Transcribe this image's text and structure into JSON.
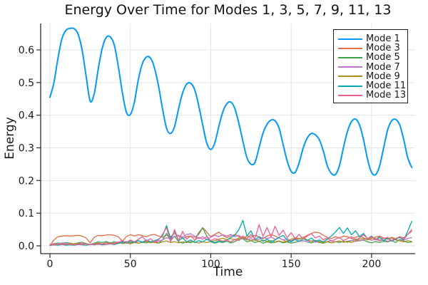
{
  "title": "Energy Over Time for Modes 1, 3, 5, 7, 9, 11, 13",
  "chart_data": {
    "type": "line",
    "title": "Energy Over Time for Modes 1, 3, 5, 7, 9, 11, 13",
    "xlabel": "Time",
    "ylabel": "Energy",
    "xlim": [
      -5.8,
      227
    ],
    "ylim": [
      -0.024,
      0.68
    ],
    "grid": true,
    "legend_position": "top-right",
    "xticks": [
      "0",
      "50",
      "100",
      "150",
      "200"
    ],
    "yticks": [
      "0.0",
      "0.1",
      "0.2",
      "0.3",
      "0.4",
      "0.5",
      "0.6"
    ],
    "x_start": 0,
    "x_step": 2.5,
    "series": [
      {
        "name": "Mode 1",
        "color": "#009AF9",
        "width": 2,
        "smooth": true,
        "values": [
          0.455,
          0.5,
          0.575,
          0.635,
          0.66,
          0.666,
          0.665,
          0.648,
          0.6,
          0.52,
          0.443,
          0.465,
          0.54,
          0.605,
          0.638,
          0.64,
          0.615,
          0.55,
          0.47,
          0.41,
          0.402,
          0.44,
          0.51,
          0.558,
          0.578,
          0.575,
          0.545,
          0.49,
          0.42,
          0.36,
          0.344,
          0.365,
          0.42,
          0.468,
          0.495,
          0.498,
          0.478,
          0.43,
          0.37,
          0.315,
          0.295,
          0.315,
          0.365,
          0.41,
          0.435,
          0.44,
          0.42,
          0.375,
          0.32,
          0.27,
          0.25,
          0.255,
          0.3,
          0.345,
          0.372,
          0.385,
          0.383,
          0.36,
          0.31,
          0.26,
          0.228,
          0.225,
          0.255,
          0.3,
          0.33,
          0.344,
          0.34,
          0.325,
          0.29,
          0.245,
          0.222,
          0.218,
          0.245,
          0.3,
          0.35,
          0.38,
          0.388,
          0.37,
          0.325,
          0.265,
          0.225,
          0.218,
          0.245,
          0.3,
          0.355,
          0.383,
          0.387,
          0.37,
          0.325,
          0.27,
          0.24
        ]
      },
      {
        "name": "Mode 3",
        "color": "#E26E46",
        "width": 1.3,
        "smooth": false,
        "values": [
          0.001,
          0.018,
          0.028,
          0.03,
          0.031,
          0.03,
          0.031,
          0.032,
          0.03,
          0.024,
          0.009,
          0.026,
          0.032,
          0.031,
          0.033,
          0.034,
          0.032,
          0.028,
          0.014,
          0.028,
          0.034,
          0.03,
          0.034,
          0.031,
          0.028,
          0.033,
          0.035,
          0.03,
          0.026,
          0.032,
          0.028,
          0.038,
          0.03,
          0.022,
          0.028,
          0.03,
          0.026,
          0.035,
          0.056,
          0.042,
          0.028,
          0.035,
          0.042,
          0.032,
          0.025,
          0.03,
          0.035,
          0.028,
          0.022,
          0.03,
          0.026,
          0.032,
          0.028,
          0.022,
          0.03,
          0.035,
          0.03,
          0.024,
          0.018,
          0.012,
          0.016,
          0.022,
          0.02,
          0.026,
          0.032,
          0.038,
          0.042,
          0.04,
          0.032,
          0.026,
          0.022,
          0.028,
          0.024,
          0.03,
          0.028,
          0.022,
          0.026,
          0.03,
          0.024,
          0.02,
          0.026,
          0.022,
          0.018,
          0.024,
          0.02,
          0.026,
          0.022,
          0.028,
          0.024,
          0.035,
          0.05
        ]
      },
      {
        "name": "Mode 5",
        "color": "#3DA44D",
        "width": 1.3,
        "smooth": false,
        "values": [
          0.002,
          0.006,
          0.009,
          0.007,
          0.01,
          0.008,
          0.006,
          0.009,
          0.011,
          0.007,
          0.004,
          0.008,
          0.012,
          0.01,
          0.013,
          0.009,
          0.012,
          0.008,
          0.01,
          0.013,
          0.009,
          0.012,
          0.008,
          0.011,
          0.009,
          0.013,
          0.01,
          0.008,
          0.018,
          0.038,
          0.015,
          0.03,
          0.012,
          0.008,
          0.012,
          0.009,
          0.015,
          0.04,
          0.055,
          0.03,
          0.012,
          0.008,
          0.012,
          0.01,
          0.014,
          0.009,
          0.013,
          0.02,
          0.022,
          0.012,
          0.016,
          0.01,
          0.014,
          0.008,
          0.012,
          0.009,
          0.011,
          0.014,
          0.009,
          0.012,
          0.008,
          0.011,
          0.014,
          0.016,
          0.012,
          0.009,
          0.013,
          0.01,
          0.008,
          0.012,
          0.009,
          0.013,
          0.01,
          0.014,
          0.011,
          0.016,
          0.021,
          0.015,
          0.018,
          0.012,
          0.009,
          0.013,
          0.01,
          0.014,
          0.012,
          0.016,
          0.01,
          0.02,
          0.015,
          0.01,
          0.012
        ]
      },
      {
        "name": "Mode 7",
        "color": "#C371D2",
        "width": 1.3,
        "smooth": false,
        "values": [
          0.003,
          0.007,
          0.005,
          0.009,
          0.006,
          0.008,
          0.005,
          0.007,
          0.009,
          0.006,
          0.004,
          0.007,
          0.009,
          0.006,
          0.01,
          0.007,
          0.009,
          0.012,
          0.008,
          0.011,
          0.014,
          0.01,
          0.015,
          0.012,
          0.016,
          0.013,
          0.01,
          0.014,
          0.018,
          0.025,
          0.02,
          0.028,
          0.032,
          0.027,
          0.035,
          0.037,
          0.03,
          0.022,
          0.028,
          0.02,
          0.026,
          0.032,
          0.028,
          0.034,
          0.03,
          0.035,
          0.028,
          0.032,
          0.024,
          0.018,
          0.022,
          0.016,
          0.02,
          0.026,
          0.022,
          0.027,
          0.02,
          0.024,
          0.018,
          0.022,
          0.015,
          0.019,
          0.013,
          0.016,
          0.012,
          0.015,
          0.011,
          0.014,
          0.01,
          0.013,
          0.016,
          0.012,
          0.015,
          0.011,
          0.014,
          0.017,
          0.013,
          0.016,
          0.019,
          0.022,
          0.017,
          0.02,
          0.015,
          0.018,
          0.014,
          0.017,
          0.02,
          0.015,
          0.018,
          0.022,
          0.025
        ]
      },
      {
        "name": "Mode 9",
        "color": "#AC8D18",
        "width": 1.3,
        "smooth": false,
        "values": [
          0.002,
          0.005,
          0.003,
          0.006,
          0.004,
          0.007,
          0.005,
          0.008,
          0.005,
          0.007,
          0.004,
          0.006,
          0.008,
          0.005,
          0.009,
          0.006,
          0.008,
          0.01,
          0.007,
          0.009,
          0.006,
          0.01,
          0.008,
          0.011,
          0.013,
          0.009,
          0.012,
          0.008,
          0.012,
          0.015,
          0.01,
          0.013,
          0.009,
          0.012,
          0.01,
          0.013,
          0.011,
          0.009,
          0.012,
          0.01,
          0.013,
          0.016,
          0.02,
          0.023,
          0.019,
          0.022,
          0.018,
          0.024,
          0.026,
          0.02,
          0.016,
          0.019,
          0.014,
          0.017,
          0.013,
          0.016,
          0.012,
          0.015,
          0.011,
          0.014,
          0.02,
          0.025,
          0.022,
          0.026,
          0.018,
          0.014,
          0.017,
          0.012,
          0.01,
          0.013,
          0.009,
          0.012,
          0.015,
          0.011,
          0.014,
          0.01,
          0.016,
          0.02,
          0.023,
          0.018,
          0.022,
          0.027,
          0.03,
          0.024,
          0.02,
          0.024,
          0.018,
          0.015,
          0.012,
          0.016,
          0.013
        ]
      },
      {
        "name": "Mode 11",
        "color": "#00AAAE",
        "width": 1.3,
        "smooth": false,
        "values": [
          0.001,
          0.003,
          0.002,
          0.004,
          0.002,
          0.003,
          0.002,
          0.004,
          0.003,
          0.002,
          0.004,
          0.003,
          0.005,
          0.003,
          0.004,
          0.006,
          0.004,
          0.007,
          0.012,
          0.008,
          0.015,
          0.01,
          0.016,
          0.011,
          0.018,
          0.012,
          0.016,
          0.02,
          0.03,
          0.062,
          0.022,
          0.045,
          0.015,
          0.025,
          0.012,
          0.018,
          0.01,
          0.016,
          0.012,
          0.02,
          0.014,
          0.01,
          0.016,
          0.012,
          0.018,
          0.025,
          0.032,
          0.05,
          0.078,
          0.03,
          0.046,
          0.018,
          0.028,
          0.014,
          0.02,
          0.012,
          0.018,
          0.026,
          0.032,
          0.018,
          0.012,
          0.02,
          0.014,
          0.022,
          0.016,
          0.024,
          0.014,
          0.018,
          0.012,
          0.02,
          0.03,
          0.042,
          0.056,
          0.038,
          0.055,
          0.034,
          0.046,
          0.028,
          0.038,
          0.022,
          0.03,
          0.018,
          0.026,
          0.016,
          0.024,
          0.014,
          0.02,
          0.026,
          0.018,
          0.045,
          0.075
        ]
      },
      {
        "name": "Mode 13",
        "color": "#ED5E93",
        "width": 1.3,
        "smooth": false,
        "values": [
          0.004,
          0.002,
          0.005,
          0.003,
          0.006,
          0.004,
          0.003,
          0.005,
          0.004,
          0.006,
          0.003,
          0.005,
          0.004,
          0.006,
          0.004,
          0.007,
          0.005,
          0.01,
          0.016,
          0.01,
          0.018,
          0.012,
          0.02,
          0.028,
          0.014,
          0.022,
          0.012,
          0.018,
          0.035,
          0.056,
          0.012,
          0.05,
          0.016,
          0.044,
          0.02,
          0.03,
          0.018,
          0.026,
          0.02,
          0.028,
          0.016,
          0.022,
          0.018,
          0.014,
          0.018,
          0.012,
          0.02,
          0.016,
          0.03,
          0.022,
          0.035,
          0.02,
          0.065,
          0.03,
          0.056,
          0.028,
          0.06,
          0.032,
          0.048,
          0.025,
          0.04,
          0.022,
          0.035,
          0.02,
          0.03,
          0.038,
          0.024,
          0.03,
          0.018,
          0.024,
          0.014,
          0.02,
          0.026,
          0.016,
          0.022,
          0.028,
          0.018,
          0.024,
          0.034,
          0.022,
          0.028,
          0.018,
          0.03,
          0.022,
          0.026,
          0.016,
          0.022,
          0.028,
          0.02,
          0.035,
          0.045
        ]
      }
    ],
    "colors": {
      "grid": "#E4E4E4",
      "axis": "#2B2B2B",
      "text": "#191919",
      "background": "#FFFFFF"
    }
  }
}
